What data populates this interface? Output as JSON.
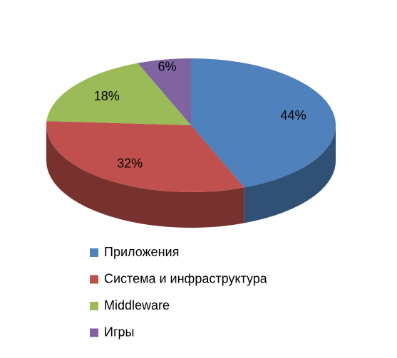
{
  "chart_data": {
    "type": "pie3d",
    "categories": [
      "Приложения",
      "Система и инфраструктура",
      "Middleware",
      "Игры"
    ],
    "values": [
      44,
      32,
      18,
      6
    ],
    "value_labels": [
      "44%",
      "32%",
      "18%",
      "6%"
    ],
    "colors": [
      "#4f81bd",
      "#c0504d",
      "#9bbb59",
      "#8064a2"
    ],
    "legend": "bottom"
  }
}
